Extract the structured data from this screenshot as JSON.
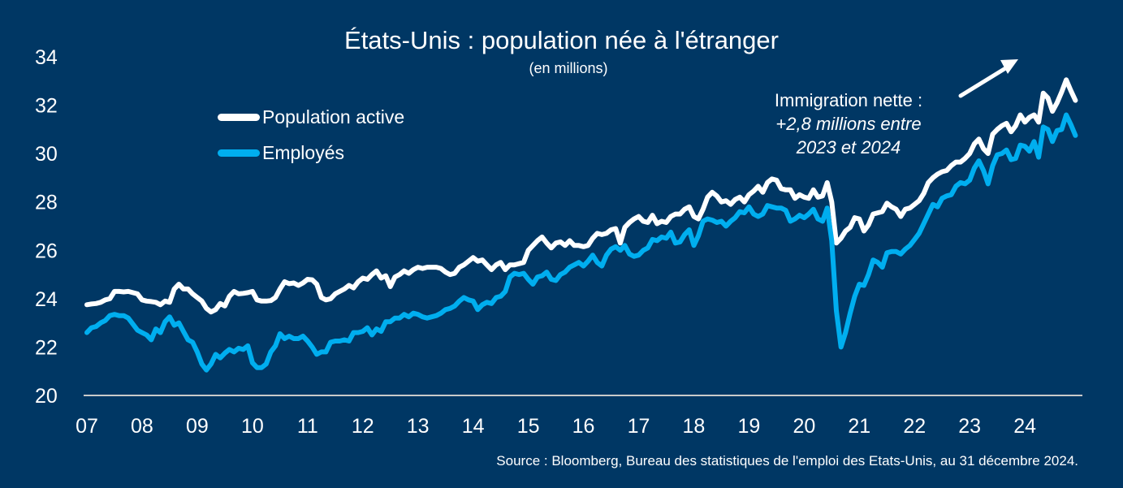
{
  "chart_data": {
    "type": "line",
    "title": "États-Unis : population née à l'étranger",
    "subtitle": "(en millions)",
    "xlabel": "",
    "ylabel": "",
    "ylim": [
      20,
      34
    ],
    "yticks": [
      "20",
      "22",
      "24",
      "26",
      "28",
      "30",
      "32",
      "34"
    ],
    "xticks": [
      "07",
      "08",
      "09",
      "10",
      "11",
      "12",
      "13",
      "14",
      "15",
      "16",
      "17",
      "18",
      "19",
      "20",
      "21",
      "22",
      "23",
      "24"
    ],
    "x_start": "2007-01",
    "x_frequency": "monthly",
    "grid": false,
    "legend_position": "top-left",
    "series": [
      {
        "name": "Population active",
        "color": "#ffffff",
        "values": [
          23.75,
          23.78,
          23.8,
          23.85,
          23.95,
          24.0,
          24.3,
          24.3,
          24.28,
          24.3,
          24.25,
          24.2,
          23.95,
          23.9,
          23.88,
          23.85,
          23.75,
          23.9,
          23.85,
          24.4,
          24.6,
          24.4,
          24.4,
          24.2,
          24.05,
          23.9,
          23.6,
          23.45,
          23.55,
          23.8,
          23.7,
          24.1,
          24.3,
          24.2,
          24.22,
          24.25,
          24.3,
          23.95,
          23.9,
          23.9,
          23.92,
          24.05,
          24.4,
          24.7,
          24.62,
          24.65,
          24.55,
          24.65,
          24.8,
          24.78,
          24.6,
          24.05,
          23.95,
          24.0,
          24.2,
          24.3,
          24.4,
          24.55,
          24.45,
          24.7,
          24.85,
          24.8,
          25.0,
          25.15,
          24.85,
          24.95,
          24.5,
          24.9,
          25.0,
          25.15,
          25.05,
          25.2,
          25.3,
          25.25,
          25.3,
          25.3,
          25.3,
          25.25,
          25.1,
          25.0,
          25.05,
          25.3,
          25.4,
          25.55,
          25.7,
          25.55,
          25.6,
          25.4,
          25.2,
          25.4,
          25.5,
          25.2,
          25.4,
          25.4,
          25.45,
          25.5,
          26.0,
          26.2,
          26.4,
          26.55,
          26.3,
          26.1,
          26.3,
          26.35,
          26.2,
          26.4,
          26.2,
          26.2,
          26.15,
          26.2,
          26.5,
          26.7,
          26.65,
          26.7,
          26.85,
          26.9,
          26.3,
          26.95,
          27.15,
          27.3,
          27.4,
          27.2,
          27.15,
          27.45,
          27.1,
          27.2,
          27.15,
          27.4,
          27.5,
          27.5,
          27.7,
          27.8,
          27.4,
          27.3,
          27.7,
          28.2,
          28.4,
          28.25,
          28.0,
          28.05,
          27.9,
          28.1,
          28.2,
          28.0,
          28.3,
          28.45,
          28.65,
          28.4,
          28.8,
          28.95,
          28.9,
          28.55,
          28.5,
          28.5,
          28.15,
          28.3,
          28.2,
          28.15,
          28.5,
          28.2,
          28.25,
          28.8,
          28.0,
          26.3,
          26.5,
          26.8,
          26.95,
          27.35,
          27.3,
          26.8,
          27.05,
          27.5,
          27.55,
          27.6,
          27.95,
          27.8,
          27.7,
          27.4,
          27.7,
          27.75,
          27.9,
          28.05,
          28.35,
          28.8,
          29.0,
          29.15,
          29.25,
          29.3,
          29.5,
          29.65,
          29.65,
          29.8,
          30.0,
          30.4,
          30.6,
          30.2,
          30.0,
          30.8,
          31.0,
          31.15,
          31.25,
          30.9,
          31.15,
          31.6,
          31.3,
          31.5,
          31.6,
          31.3,
          32.5,
          32.3,
          31.75,
          32.1,
          32.55,
          33.05,
          32.6,
          32.2
        ]
      },
      {
        "name": "Employés",
        "color": "#00aeef",
        "values": [
          22.6,
          22.8,
          22.85,
          23.0,
          23.1,
          23.3,
          23.35,
          23.3,
          23.3,
          23.2,
          22.95,
          22.7,
          22.6,
          22.5,
          22.3,
          22.75,
          22.6,
          23.05,
          23.25,
          22.9,
          23.0,
          22.65,
          22.3,
          22.2,
          21.8,
          21.3,
          21.05,
          21.3,
          21.7,
          21.55,
          21.75,
          21.9,
          21.8,
          21.95,
          21.9,
          22.05,
          21.35,
          21.15,
          21.15,
          21.3,
          21.8,
          22.05,
          22.55,
          22.35,
          22.45,
          22.35,
          22.35,
          22.45,
          22.25,
          22.0,
          21.7,
          21.8,
          21.8,
          22.2,
          22.25,
          22.25,
          22.3,
          22.25,
          22.6,
          22.6,
          22.65,
          22.8,
          22.5,
          22.75,
          22.65,
          23.05,
          23.05,
          23.2,
          23.2,
          23.35,
          23.25,
          23.4,
          23.35,
          23.25,
          23.2,
          23.25,
          23.3,
          23.4,
          23.55,
          23.6,
          23.7,
          23.9,
          24.05,
          23.95,
          23.9,
          23.55,
          23.75,
          23.85,
          23.8,
          24.05,
          24.1,
          24.3,
          24.9,
          25.05,
          25.0,
          25.05,
          24.8,
          24.6,
          24.9,
          24.95,
          25.1,
          24.8,
          24.75,
          25.0,
          25.1,
          25.3,
          25.4,
          25.5,
          25.35,
          25.55,
          25.8,
          25.5,
          25.35,
          25.8,
          26.05,
          26.15,
          26.0,
          26.2,
          25.85,
          25.75,
          25.8,
          26.0,
          26.1,
          26.45,
          26.4,
          26.55,
          26.5,
          26.75,
          26.3,
          26.35,
          26.65,
          26.85,
          26.2,
          26.6,
          27.2,
          27.3,
          27.25,
          27.15,
          27.2,
          27.0,
          27.2,
          27.35,
          27.6,
          27.55,
          27.8,
          27.5,
          27.4,
          27.5,
          27.85,
          27.8,
          27.75,
          27.75,
          27.65,
          27.2,
          27.3,
          27.45,
          27.35,
          27.5,
          27.7,
          27.3,
          27.2,
          27.75,
          26.4,
          23.5,
          22.0,
          22.6,
          23.4,
          24.1,
          24.6,
          24.55,
          25.0,
          25.6,
          25.5,
          25.3,
          25.9,
          25.95,
          25.95,
          25.85,
          26.05,
          26.2,
          26.45,
          26.7,
          27.1,
          27.5,
          27.9,
          27.8,
          28.15,
          28.25,
          28.3,
          28.65,
          28.8,
          28.75,
          28.9,
          29.4,
          29.7,
          29.3,
          28.75,
          29.5,
          29.95,
          30.0,
          30.15,
          29.75,
          29.8,
          30.35,
          30.3,
          30.1,
          30.5,
          29.85,
          31.1,
          31.0,
          30.5,
          30.95,
          31.0,
          31.6,
          31.2,
          30.75
        ]
      }
    ],
    "annotations": [
      {
        "text_line1": "Immigration nette :",
        "text_line2": "+2,8 millions entre",
        "text_line3": "2023 et 2024",
        "arrow": "up-right"
      }
    ]
  },
  "source": "Source : Bloomberg, Bureau des statistiques de l'emploi des Etats-Unis, au 31 décembre 2024."
}
